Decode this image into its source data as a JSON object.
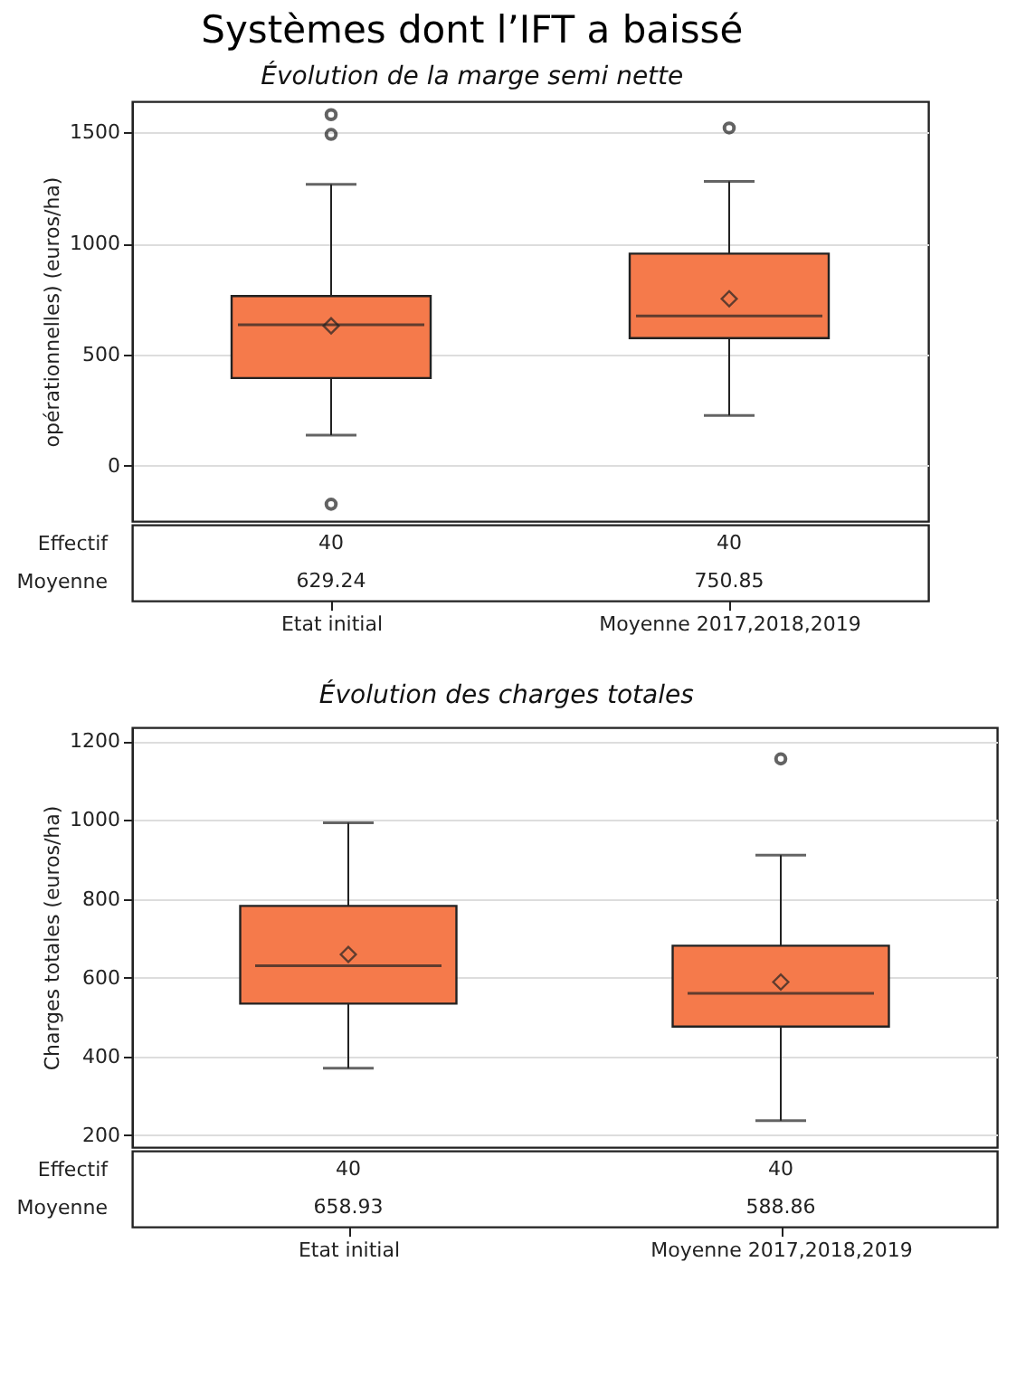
{
  "chart_data": [
    {
      "type": "box",
      "title": "Systèmes dont l’IFT a baissé",
      "subtitle": "Évolution de la marge semi nette",
      "ylabel": "opérationnelles) (euros/ha)",
      "categories": [
        "Etat initial",
        "Moyenne 2017,2018,2019"
      ],
      "series": [
        {
          "color": "#f57a4b",
          "boxes": [
            {
              "low": 137,
              "q1": 394,
              "median": 634,
              "q3": 763,
              "high": 1266,
              "mean": 629.24,
              "outliers": [
                1580,
                1491,
                -174
              ]
            },
            {
              "low": 226,
              "q1": 574,
              "median": 674,
              "q3": 954,
              "high": 1280,
              "mean": 750.85,
              "outliers": [
                1520
              ]
            }
          ]
        }
      ],
      "ylim": [
        -250,
        1640
      ],
      "yticks": [
        0,
        500,
        1000,
        1500
      ],
      "grid": "y",
      "marker": "diamond",
      "annotations": [
        "Effectif",
        "Moyenne",
        "40",
        "40",
        "629.24",
        "750.85"
      ]
    },
    {
      "type": "box",
      "title": "Évolution des charges totales",
      "ylabel": "Charges totales (euros/ha)",
      "categories": [
        "Etat initial",
        "Moyenne 2017,2018,2019"
      ],
      "series": [
        {
          "color": "#f57a4b",
          "boxes": [
            {
              "low": 370,
              "q1": 534,
              "median": 630,
              "q3": 782,
              "high": 993,
              "mean": 658.93
            },
            {
              "low": 237,
              "q1": 476,
              "median": 560,
              "q3": 681,
              "high": 911,
              "mean": 588.86,
              "outliers": [
                1155
              ]
            }
          ]
        }
      ],
      "ylim": [
        170,
        1235
      ],
      "yticks": [
        200,
        400,
        600,
        800,
        1000,
        1200
      ],
      "grid": "y",
      "marker": "diamond",
      "annotations": [
        "Effectif",
        "Moyenne",
        "40",
        "40",
        "658.93",
        "588.86"
      ]
    }
  ]
}
